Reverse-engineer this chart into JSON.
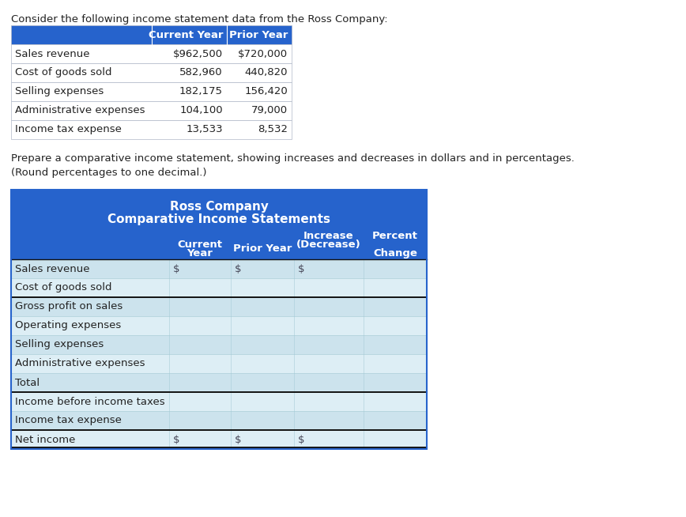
{
  "intro_text": "Consider the following income statement data from the Ross Company:",
  "prepare_text1": "Prepare a comparative income statement, showing increases and decreases in dollars and in percentages.",
  "prepare_text2": "(Round percentages to one decimal.)",
  "top_table": {
    "header": [
      "",
      "Current Year",
      "Prior Year"
    ],
    "rows": [
      [
        "Sales revenue",
        "$962,500",
        "$720,000"
      ],
      [
        "Cost of goods sold",
        "582,960",
        "440,820"
      ],
      [
        "Selling expenses",
        "182,175",
        "156,420"
      ],
      [
        "Administrative expenses",
        "104,100",
        "79,000"
      ],
      [
        "Income tax expense",
        "13,533",
        "8,532"
      ]
    ],
    "header_bg": "#2663CC",
    "header_text_color": "#ffffff",
    "border_color": "#b0b8c8"
  },
  "bottom_table": {
    "company": "Ross Company",
    "subtitle": "Comparative Income Statements",
    "header_bg": "#2663CC",
    "header_text_color": "#ffffff",
    "rows": [
      [
        "Sales revenue",
        "$",
        "$",
        "$",
        ""
      ],
      [
        "Cost of goods sold",
        "",
        "",
        "",
        ""
      ],
      [
        "Gross profit on sales",
        "",
        "",
        "",
        ""
      ],
      [
        "Operating expenses",
        "",
        "",
        "",
        ""
      ],
      [
        "Selling expenses",
        "",
        "",
        "",
        ""
      ],
      [
        "Administrative expenses",
        "",
        "",
        "",
        ""
      ],
      [
        "Total",
        "",
        "",
        "",
        ""
      ],
      [
        "Income before income taxes",
        "",
        "",
        "",
        ""
      ],
      [
        "Income tax expense",
        "",
        "",
        "",
        ""
      ],
      [
        "Net income",
        "$",
        "$",
        "$",
        ""
      ]
    ],
    "row_colors": [
      "#cce3ed",
      "#ddeef5",
      "#cce3ed",
      "#ddeef5",
      "#cce3ed",
      "#ddeef5",
      "#cce3ed",
      "#ddeef5",
      "#cce3ed",
      "#ddeef5"
    ],
    "thick_border_after_rows": [
      1,
      6,
      8
    ],
    "double_border_last": true
  },
  "bg_color": "#ffffff",
  "font_size": 9.5
}
